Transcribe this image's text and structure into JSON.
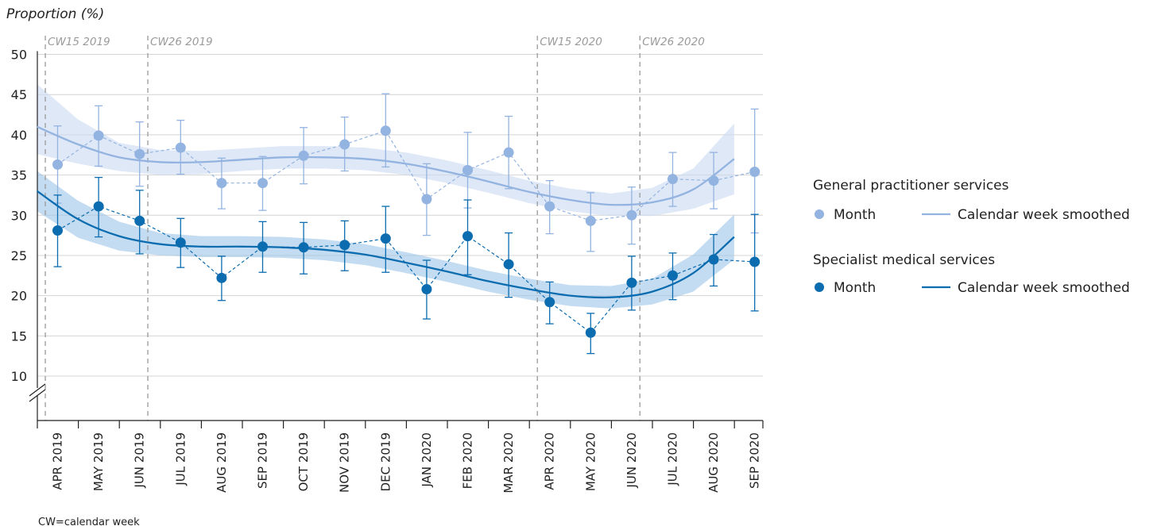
{
  "chart_data": {
    "type": "line",
    "ylabel": "Proportion (%)",
    "ylim": [
      10,
      50
    ],
    "yticks": [
      10,
      15,
      20,
      25,
      30,
      35,
      40,
      45,
      50
    ],
    "axis_break": true,
    "grid": true,
    "categories": [
      "APR 2019",
      "MAY 2019",
      "JUN 2019",
      "JUL 2019",
      "AUG 2019",
      "SEP 2019",
      "OCT 2019",
      "NOV 2019",
      "DEC 2019",
      "JAN 2020",
      "FEB 2020",
      "MAR 2020",
      "APR 2020",
      "MAY 2020",
      "JUN 2020",
      "JUL 2020",
      "AUG 2020",
      "SEP 2020"
    ],
    "annotations": [
      {
        "label": "CW15 2019",
        "at": -0.3
      },
      {
        "label": "CW26 2019",
        "at": 2.2
      },
      {
        "label": "CW15 2020",
        "at": 11.7
      },
      {
        "label": "CW26 2020",
        "at": 14.2
      }
    ],
    "groups": [
      {
        "title": "General practitioner services",
        "color": "#93b3e0",
        "band_color": "#c9d9f2",
        "month_label": "Month",
        "smooth_label": "Calendar week smoothed",
        "month": [
          36.3,
          39.9,
          37.6,
          38.4,
          34.0,
          34.0,
          37.4,
          38.8,
          40.5,
          32.0,
          35.6,
          37.8,
          31.1,
          29.3,
          30.0,
          34.5,
          34.3,
          35.4
        ],
        "ci_low": [
          31.5,
          36.1,
          33.6,
          35.1,
          30.8,
          30.6,
          33.9,
          35.5,
          36.0,
          27.5,
          30.9,
          33.3,
          27.7,
          25.5,
          26.4,
          31.1,
          30.8,
          27.8
        ],
        "ci_high": [
          41.1,
          43.6,
          41.6,
          41.8,
          37.1,
          37.3,
          40.9,
          42.2,
          45.1,
          36.4,
          40.3,
          42.3,
          34.3,
          32.8,
          33.5,
          37.8,
          37.8,
          43.2
        ],
        "smooth_x": [
          -0.5,
          0.5,
          1.5,
          2.5,
          3.5,
          4.5,
          5.5,
          6.5,
          7.5,
          8.5,
          9.5,
          10.5,
          11.5,
          12.5,
          13.5,
          14.5,
          15.5,
          16.5
        ],
        "smooth_y": [
          41.0,
          38.8,
          37.2,
          36.6,
          36.6,
          36.9,
          37.2,
          37.2,
          37.0,
          36.4,
          35.4,
          34.2,
          32.9,
          31.9,
          31.3,
          31.6,
          33.2,
          37.0
        ],
        "smooth_low": [
          37.6,
          36.4,
          35.5,
          35.0,
          35.1,
          35.5,
          35.8,
          35.8,
          35.6,
          35.0,
          34.0,
          32.8,
          31.5,
          30.5,
          29.9,
          29.9,
          30.8,
          32.6
        ],
        "smooth_high": [
          46.3,
          41.9,
          39.0,
          38.1,
          38.0,
          38.3,
          38.6,
          38.6,
          38.4,
          37.8,
          36.8,
          35.6,
          34.3,
          33.3,
          32.7,
          33.4,
          35.8,
          41.4
        ]
      },
      {
        "title": "Specialist medical services",
        "color": "#0b6cb0",
        "band_color": "#9cc5e8",
        "month_label": "Month",
        "smooth_label": "Calendar week smoothed",
        "month": [
          28.1,
          31.1,
          29.3,
          26.6,
          22.2,
          26.1,
          26.0,
          26.3,
          27.1,
          20.8,
          27.4,
          23.9,
          19.2,
          15.4,
          21.6,
          22.5,
          24.5,
          24.2
        ],
        "ci_low": [
          23.6,
          27.3,
          25.2,
          23.5,
          19.4,
          22.9,
          22.7,
          23.1,
          22.9,
          17.1,
          22.6,
          19.8,
          16.5,
          12.8,
          18.2,
          19.5,
          21.2,
          18.1
        ],
        "ci_high": [
          32.5,
          34.7,
          33.1,
          29.6,
          24.9,
          29.2,
          29.1,
          29.3,
          31.1,
          24.4,
          31.9,
          27.8,
          21.7,
          17.8,
          24.9,
          25.3,
          27.6,
          30.1
        ],
        "smooth_x": [
          -0.5,
          0.5,
          1.5,
          2.5,
          3.5,
          4.5,
          5.5,
          6.5,
          7.5,
          8.5,
          9.5,
          10.5,
          11.5,
          12.5,
          13.5,
          14.5,
          15.5,
          16.5
        ],
        "smooth_y": [
          33.0,
          29.5,
          27.4,
          26.4,
          26.1,
          26.1,
          26.0,
          25.7,
          25.1,
          24.1,
          23.0,
          21.8,
          20.8,
          20.0,
          19.8,
          20.5,
          22.8,
          27.3
        ],
        "smooth_low": [
          30.5,
          27.2,
          25.6,
          25.0,
          24.8,
          24.8,
          24.7,
          24.4,
          23.8,
          22.8,
          21.7,
          20.5,
          19.5,
          18.7,
          18.4,
          18.9,
          20.5,
          24.5
        ],
        "smooth_high": [
          35.5,
          31.8,
          29.2,
          27.8,
          27.4,
          27.4,
          27.3,
          27.0,
          26.4,
          25.4,
          24.3,
          23.1,
          22.1,
          21.3,
          21.2,
          22.1,
          25.1,
          30.1
        ]
      }
    ],
    "footnote": "CW=calendar week"
  }
}
